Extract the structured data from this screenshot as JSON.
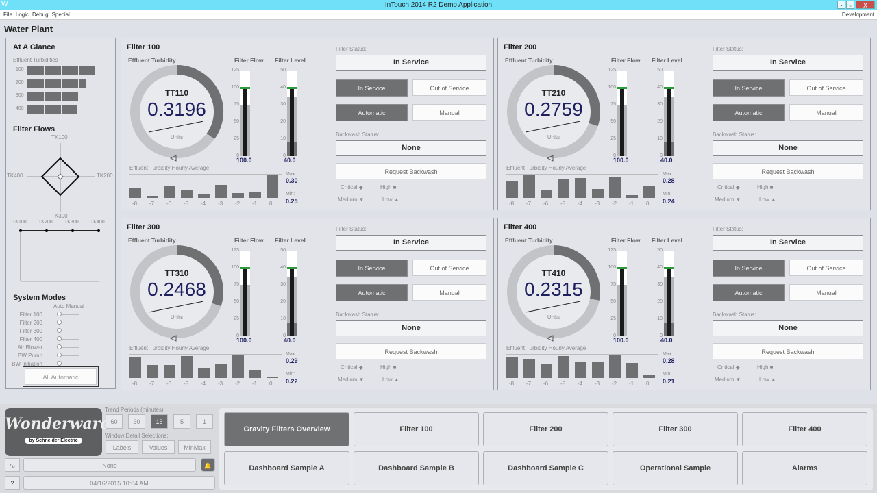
{
  "window": {
    "title": "InTouch 2014 R2 Demo Application",
    "menu": [
      "File",
      "Logic",
      "Debug",
      "Special"
    ],
    "mode": "Development",
    "controls": [
      "-",
      "▫",
      "X"
    ]
  },
  "app_title": "Water Plant",
  "glance": {
    "title": "At A Glance",
    "subtitle": "Effluent Turbidities",
    "rows": [
      {
        "label": "100",
        "fraction": 1.0
      },
      {
        "label": "200",
        "fraction": 0.88
      },
      {
        "label": "300",
        "fraction": 0.78
      },
      {
        "label": "400",
        "fraction": 0.73
      }
    ],
    "flows_title": "Filter Flows",
    "radar_labels": [
      "TK100",
      "TK200",
      "TK300",
      "TK400"
    ],
    "line_labels": [
      "TK100",
      "TK200",
      "TK300",
      "TK400"
    ]
  },
  "modes": {
    "title": "System Modes",
    "header": "Auto Manual",
    "items": [
      "Filter 100",
      "Filter 200",
      "Filter 300",
      "Filter 400",
      "Air Blower",
      "BW Pump",
      "BW Initiation"
    ],
    "button": "All Automatic"
  },
  "filters": [
    {
      "title": "Filter 100",
      "tag": "TT110",
      "value": "0.3196",
      "units": "Units",
      "gauge_fraction": 0.35,
      "flow": "100.0",
      "level": "40.0",
      "flow_fraction": 0.8,
      "level_fraction": 0.7,
      "max": "0.30",
      "min": "0.25",
      "hourly": [
        0.268,
        0.25,
        0.272,
        0.262,
        0.254,
        0.275,
        0.256,
        0.258,
        0.3
      ],
      "ylim": [
        0.245,
        0.3
      ]
    },
    {
      "title": "Filter 200",
      "tag": "TT210",
      "value": "0.2759",
      "units": "Units",
      "gauge_fraction": 0.3,
      "flow": "100.0",
      "level": "40.0",
      "flow_fraction": 0.8,
      "level_fraction": 0.7,
      "max": "0.28",
      "min": "0.24",
      "hourly": [
        0.268,
        0.28,
        0.249,
        0.272,
        0.274,
        0.252,
        0.275,
        0.24,
        0.258
      ],
      "ylim": [
        0.235,
        0.28
      ]
    },
    {
      "title": "Filter 300",
      "tag": "TT310",
      "value": "0.2468",
      "units": "Units",
      "gauge_fraction": 0.3,
      "flow": "100.0",
      "level": "40.0",
      "flow_fraction": 0.8,
      "level_fraction": 0.7,
      "max": "0.29",
      "min": "0.22",
      "hourly": [
        0.281,
        0.256,
        0.256,
        0.285,
        0.249,
        0.262,
        0.29,
        0.24,
        0.22
      ],
      "ylim": [
        0.215,
        0.29
      ]
    },
    {
      "title": "Filter 400",
      "tag": "TT410",
      "value": "0.2315",
      "units": "Units",
      "gauge_fraction": 0.28,
      "flow": "100.0",
      "level": "40.0",
      "flow_fraction": 0.8,
      "level_fraction": 0.7,
      "max": "0.28",
      "min": "0.21",
      "hourly": [
        0.273,
        0.267,
        0.252,
        0.276,
        0.259,
        0.255,
        0.28,
        0.253,
        0.213
      ],
      "ylim": [
        0.205,
        0.28
      ]
    }
  ],
  "filter_common": {
    "effluent": "Effluent Turbidity",
    "flow_label": "Filter Flow",
    "level_label": "Filter Level",
    "flow_ticks": [
      "125",
      "100",
      "75",
      "50",
      "25",
      "0"
    ],
    "level_ticks": [
      "50",
      "40",
      "30",
      "20",
      "10",
      "0"
    ],
    "status_label": "Filter Status:",
    "status": "In Service",
    "in_service": "In Service",
    "out_service": "Out of Service",
    "automatic": "Automatic",
    "manual": "Manual",
    "backwash_label": "Backwash Status:",
    "backwash": "None",
    "request": "Request Backwash",
    "hourly_title": "Effluent Turbidity Hourly Average",
    "hours": [
      "-8",
      "-7",
      "-6",
      "-5",
      "-4",
      "-3",
      "-2",
      "-1",
      "0"
    ],
    "max_label": "Max:",
    "min_label": "Min:",
    "legend": [
      "Critical ◆",
      "High ■",
      "Medium ▼",
      "Low ▲"
    ]
  },
  "footer": {
    "logo": "Wonderware",
    "logo_sub": "by Schneider Electric",
    "trend_label": "Trend Periods (minutes):",
    "trend": [
      "60",
      "30",
      "15",
      "5",
      "1"
    ],
    "trend_selected": "15",
    "detail_label": "Window Detail Selections:",
    "detail": [
      "Labels",
      "Values",
      "MinMax"
    ],
    "alarm": "None",
    "datetime": "04/16/2015 10:04 AM",
    "help": "?"
  },
  "nav": [
    "Gravity Filters Overview",
    "Filter 100",
    "Filter 200",
    "Filter 300",
    "Filter 400",
    "Dashboard Sample A",
    "Dashboard Sample B",
    "Dashboard Sample C",
    "Operational Sample",
    "Alarms"
  ],
  "colors": {
    "titlebar": "#6fe0f7",
    "value": "#1f2060",
    "active": "#6f7072",
    "level_marker": "#2a9a3a"
  }
}
